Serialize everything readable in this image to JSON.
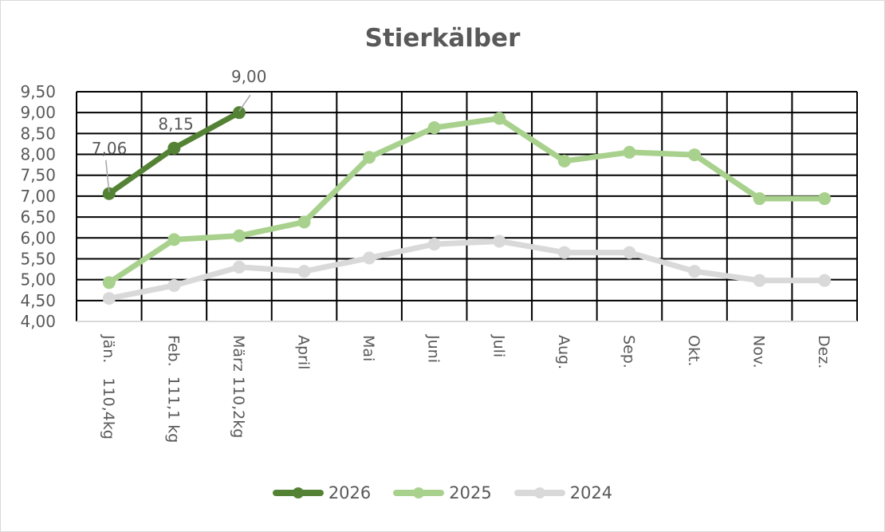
{
  "chart_data": {
    "type": "line",
    "title": "Stierkälber",
    "xlabel": "",
    "ylabel": "",
    "ylim": [
      4.0,
      9.5
    ],
    "yticks": [
      "4,00",
      "4,50",
      "5,00",
      "5,50",
      "6,00",
      "6,50",
      "7,00",
      "7,50",
      "8,00",
      "8,50",
      "9,00",
      "9,50"
    ],
    "grid": true,
    "legend_position": "bottom",
    "categories": [
      "Jän.   110,4kg",
      "Feb.  111,1 kg",
      "März 110,2kg",
      "April",
      "Mai",
      "Juni",
      "Juli",
      "Aug.",
      "Sep.",
      "Okt.",
      "Nov.",
      "Dez."
    ],
    "series": [
      {
        "name": "2026",
        "color": "#548235",
        "values": [
          7.06,
          8.15,
          9.0,
          null,
          null,
          null,
          null,
          null,
          null,
          null,
          null,
          null
        ],
        "data_labels": [
          "7,06",
          "8,15",
          "9,00"
        ]
      },
      {
        "name": "2025",
        "color": "#a9d18e",
        "values": [
          4.93,
          5.96,
          6.05,
          6.38,
          7.93,
          8.64,
          8.86,
          7.84,
          8.05,
          7.99,
          6.94,
          6.94
        ]
      },
      {
        "name": "2024",
        "color": "#d9d9d9",
        "values": [
          4.55,
          4.86,
          5.3,
          5.2,
          5.52,
          5.85,
          5.92,
          5.65,
          5.65,
          5.2,
          4.98,
          4.98
        ]
      }
    ]
  }
}
